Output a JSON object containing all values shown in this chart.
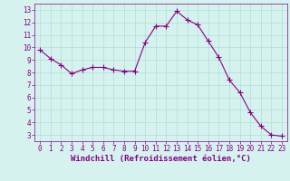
{
  "x": [
    0,
    1,
    2,
    3,
    4,
    5,
    6,
    7,
    8,
    9,
    10,
    11,
    12,
    13,
    14,
    15,
    16,
    17,
    18,
    19,
    20,
    21,
    22,
    23
  ],
  "y": [
    9.8,
    9.1,
    8.6,
    7.9,
    8.2,
    8.4,
    8.4,
    8.2,
    8.1,
    8.1,
    10.4,
    11.7,
    11.7,
    12.9,
    12.2,
    11.8,
    10.5,
    9.2,
    7.4,
    6.4,
    4.8,
    3.7,
    3.0,
    2.9
  ],
  "line_color": "#880088",
  "marker": "+",
  "markersize": 4,
  "linewidth": 0.8,
  "bg_color": "#d5f2ee",
  "grid_color": "#b0ddd8",
  "xlabel": "Windchill (Refroidissement éolien,°C)",
  "yticks": [
    3,
    4,
    5,
    6,
    7,
    8,
    9,
    10,
    11,
    12,
    13
  ],
  "xticks": [
    0,
    1,
    2,
    3,
    4,
    5,
    6,
    7,
    8,
    9,
    10,
    11,
    12,
    13,
    14,
    15,
    16,
    17,
    18,
    19,
    20,
    21,
    22,
    23
  ],
  "ylim": [
    2.5,
    13.5
  ],
  "xlim": [
    -0.5,
    23.5
  ],
  "tick_fontsize": 5.5,
  "xlabel_fontsize": 6.5,
  "tick_color": "#880088",
  "axis_color": "#880088"
}
